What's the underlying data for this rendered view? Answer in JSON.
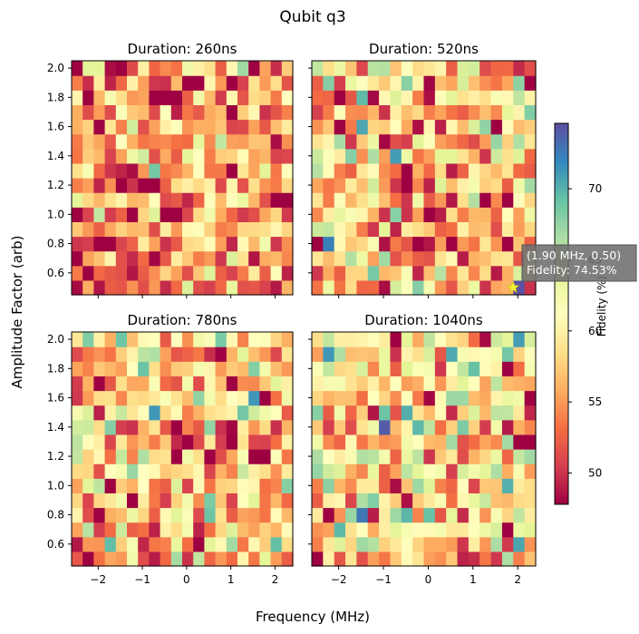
{
  "figure": {
    "suptitle": "Qubit q3",
    "xlabel": "Frequency (MHz)",
    "ylabel": "Amplitude Factor (arb)"
  },
  "colorbar": {
    "label": "Fidelity (%)",
    "colormap": "Spectral",
    "range": [
      47.8,
      74.6
    ],
    "ticks": [
      50,
      55,
      60,
      65,
      70
    ],
    "tick_labels": [
      "50",
      "55",
      "60",
      "65",
      "70"
    ]
  },
  "annotation": {
    "panel": 1,
    "x": 1.9,
    "y": 0.5,
    "line1": "(1.90 MHz, 0.50)",
    "line2": "Fidelity: 74.53%"
  },
  "chart_data": [
    {
      "type": "heatmap",
      "title": "Duration: 260ns",
      "x_range": [
        -2.6,
        2.4
      ],
      "y_range": [
        0.45,
        2.05
      ],
      "x_ticks": [
        -2,
        -1,
        0,
        1,
        2
      ],
      "x_tick_labels": [
        "−2",
        "−1",
        "0",
        "1",
        "2"
      ],
      "y_ticks": [
        0.6,
        0.8,
        1.0,
        1.2,
        1.4,
        1.6,
        1.8,
        2.0
      ],
      "y_tick_labels": [
        "0.6",
        "0.8",
        "1.0",
        "1.2",
        "1.4",
        "1.6",
        "1.8",
        "2.0"
      ],
      "show_x_tick_labels": false,
      "show_y_tick_labels": true,
      "n_cols": 20,
      "n_rows": 16,
      "seed": 11,
      "base": 54.5,
      "spread": 4.5,
      "hot_cells": [
        [
          7,
          2,
          48
        ]
      ]
    },
    {
      "type": "heatmap",
      "title": "Duration: 520ns",
      "x_range": [
        -2.6,
        2.4
      ],
      "y_range": [
        0.45,
        2.05
      ],
      "x_ticks": [
        -2,
        -1,
        0,
        1,
        2
      ],
      "x_tick_labels": [
        "−2",
        "−1",
        "0",
        "1",
        "2"
      ],
      "y_ticks": [
        0.6,
        0.8,
        1.0,
        1.2,
        1.4,
        1.6,
        1.8,
        2.0
      ],
      "y_tick_labels": [
        "0.6",
        "0.8",
        "1.0",
        "1.2",
        "1.4",
        "1.6",
        "1.8",
        "2.0"
      ],
      "show_x_tick_labels": false,
      "show_y_tick_labels": false,
      "n_cols": 20,
      "n_rows": 16,
      "seed": 23,
      "base": 57,
      "spread": 5,
      "hot_cells": [
        [
          18,
          0,
          74.5
        ],
        [
          7,
          9,
          71
        ],
        [
          3,
          9,
          68
        ],
        [
          9,
          0,
          68
        ],
        [
          1,
          14,
          68
        ]
      ]
    },
    {
      "type": "heatmap",
      "title": "Duration: 780ns",
      "x_range": [
        -2.6,
        2.4
      ],
      "y_range": [
        0.45,
        2.05
      ],
      "x_ticks": [
        -2,
        -1,
        0,
        1,
        2
      ],
      "x_tick_labels": [
        "−2",
        "−1",
        "0",
        "1",
        "2"
      ],
      "y_ticks": [
        0.6,
        0.8,
        1.0,
        1.2,
        1.4,
        1.6,
        1.8,
        2.0
      ],
      "y_tick_labels": [
        "0.6",
        "0.8",
        "1.0",
        "1.2",
        "1.4",
        "1.6",
        "1.8",
        "2.0"
      ],
      "show_x_tick_labels": true,
      "show_y_tick_labels": true,
      "n_cols": 20,
      "n_rows": 16,
      "seed": 37,
      "base": 57,
      "spread": 5,
      "hot_cells": [
        [
          14,
          9,
          48
        ],
        [
          7,
          0,
          49
        ],
        [
          1,
          2,
          66
        ]
      ]
    },
    {
      "type": "heatmap",
      "title": "Duration: 1040ns",
      "x_range": [
        -2.6,
        2.4
      ],
      "y_range": [
        0.45,
        2.05
      ],
      "x_ticks": [
        -2,
        -1,
        0,
        1,
        2
      ],
      "x_tick_labels": [
        "−2",
        "−1",
        "0",
        "1",
        "2"
      ],
      "y_ticks": [
        0.6,
        0.8,
        1.0,
        1.2,
        1.4,
        1.6,
        1.8,
        2.0
      ],
      "y_tick_labels": [
        "0.6",
        "0.8",
        "1.0",
        "1.2",
        "1.4",
        "1.6",
        "1.8",
        "2.0"
      ],
      "show_x_tick_labels": true,
      "show_y_tick_labels": false,
      "n_cols": 20,
      "n_rows": 16,
      "seed": 53,
      "base": 59,
      "spread": 5,
      "hot_cells": [
        [
          6,
          9,
          74
        ],
        [
          18,
          15,
          71
        ],
        [
          6,
          10,
          69
        ],
        [
          4,
          1,
          67
        ]
      ]
    }
  ]
}
